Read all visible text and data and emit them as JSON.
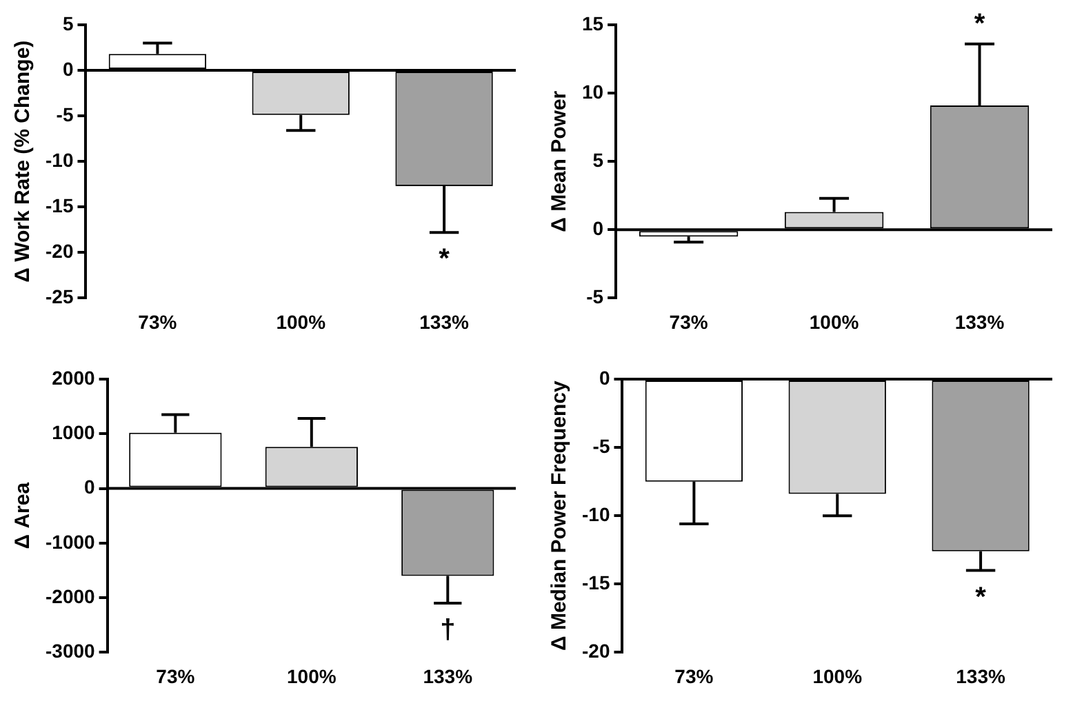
{
  "chart_data": [
    {
      "type": "bar",
      "ylabel": "Δ Work Rate (% Change)",
      "categories": [
        "73%",
        "100%",
        "133%"
      ],
      "values": [
        1.8,
        -4.9,
        -12.7
      ],
      "colors": [
        "#ffffff",
        "#d4d4d4",
        "#a0a0a0"
      ],
      "errors": [
        [
          1.8,
          3.0
        ],
        [
          -6.6,
          -4.9
        ],
        [
          -17.8,
          -12.7
        ]
      ],
      "ylim": [
        -25,
        5
      ],
      "yticks": [
        -25,
        -20,
        -15,
        -10,
        -5,
        0,
        5
      ],
      "grid": false,
      "legend": false,
      "ref_lines": [
        {
          "axis": "y",
          "value": 0,
          "color": "#000000"
        }
      ],
      "annotations": [
        "*"
      ]
    },
    {
      "type": "bar",
      "ylabel": "Δ Mean Power",
      "categories": [
        "73%",
        "100%",
        "133%"
      ],
      "values": [
        -0.5,
        1.3,
        9.1
      ],
      "colors": [
        "#ffffff",
        "#d4d4d4",
        "#a0a0a0"
      ],
      "errors": [
        [
          -0.9,
          -0.5
        ],
        [
          1.3,
          2.3
        ],
        [
          9.1,
          13.6
        ]
      ],
      "ylim": [
        -5,
        15
      ],
      "yticks": [
        -5,
        0,
        5,
        10,
        15
      ],
      "grid": false,
      "legend": false,
      "ref_lines": [
        {
          "axis": "y",
          "value": 0,
          "color": "#000000"
        }
      ],
      "annotations": [
        "*"
      ]
    },
    {
      "type": "bar",
      "ylabel": "Δ Area",
      "categories": [
        "73%",
        "100%",
        "133%"
      ],
      "values": [
        1020,
        760,
        -1600
      ],
      "colors": [
        "#ffffff",
        "#d4d4d4",
        "#a0a0a0"
      ],
      "errors": [
        [
          1020,
          1350
        ],
        [
          760,
          1280
        ],
        [
          -2100,
          -1600
        ]
      ],
      "ylim": [
        -3000,
        2000
      ],
      "yticks": [
        -3000,
        -2000,
        -1000,
        0,
        1000,
        2000
      ],
      "grid": false,
      "legend": false,
      "ref_lines": [
        {
          "axis": "y",
          "value": 0,
          "color": "#000000"
        }
      ],
      "annotations": [
        "†"
      ]
    },
    {
      "type": "bar",
      "ylabel": "Δ Median Power Frequency",
      "categories": [
        "73%",
        "100%",
        "133%"
      ],
      "values": [
        -7.5,
        -8.4,
        -12.6
      ],
      "colors": [
        "#ffffff",
        "#d4d4d4",
        "#a0a0a0"
      ],
      "errors": [
        [
          -10.6,
          -7.5
        ],
        [
          -10.0,
          -8.4
        ],
        [
          -14.0,
          -12.6
        ]
      ],
      "ylim": [
        -20,
        0
      ],
      "yticks": [
        -20,
        -15,
        -10,
        -5,
        0
      ],
      "grid": false,
      "legend": false,
      "ref_lines": [
        {
          "axis": "y",
          "value": 0,
          "color": "#000000"
        }
      ],
      "annotations": [
        "*"
      ]
    }
  ]
}
